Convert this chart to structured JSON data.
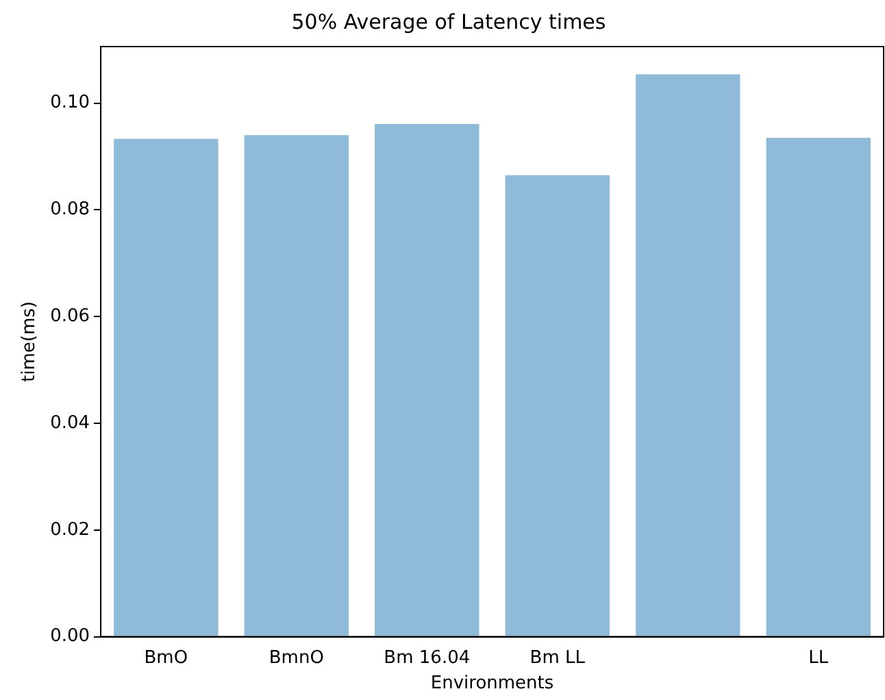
{
  "chart_data": {
    "type": "bar",
    "title": "50% Average of Latency times",
    "xlabel": "Environments",
    "ylabel": "time(ms)",
    "categories": [
      "BmO",
      "BmnO",
      "Bm 16.04",
      "Bm LL",
      null,
      "LL"
    ],
    "values": [
      0.0933,
      0.094,
      0.0961,
      0.0865,
      0.1054,
      0.0935
    ],
    "color": "#8fbbd9",
    "ylim": [
      0,
      0.1106
    ],
    "yticks": [
      {
        "value": 0,
        "label": "0.00"
      },
      {
        "value": 0.02,
        "label": "0.02"
      },
      {
        "value": 0.04,
        "label": "0.04"
      },
      {
        "value": 0.06,
        "label": "0.06"
      },
      {
        "value": 0.08,
        "label": "0.08"
      },
      {
        "value": 0.1,
        "label": "0.10"
      }
    ],
    "grid": false,
    "legend": false
  }
}
